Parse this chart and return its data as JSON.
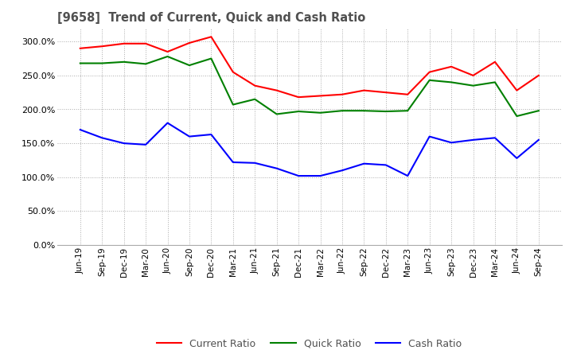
{
  "title": "[9658]  Trend of Current, Quick and Cash Ratio",
  "x_labels": [
    "Jun-19",
    "Sep-19",
    "Dec-19",
    "Mar-20",
    "Jun-20",
    "Sep-20",
    "Dec-20",
    "Mar-21",
    "Jun-21",
    "Sep-21",
    "Dec-21",
    "Mar-22",
    "Jun-22",
    "Sep-22",
    "Dec-22",
    "Mar-23",
    "Jun-23",
    "Sep-23",
    "Dec-23",
    "Mar-24",
    "Jun-24",
    "Sep-24"
  ],
  "current_ratio": [
    290,
    293,
    297,
    297,
    285,
    298,
    307,
    255,
    235,
    228,
    218,
    220,
    222,
    228,
    225,
    222,
    255,
    263,
    250,
    270,
    228,
    250
  ],
  "quick_ratio": [
    268,
    268,
    270,
    267,
    278,
    265,
    275,
    207,
    215,
    193,
    197,
    195,
    198,
    198,
    197,
    198,
    243,
    240,
    235,
    240,
    190,
    198
  ],
  "cash_ratio": [
    170,
    158,
    150,
    148,
    180,
    160,
    163,
    122,
    121,
    113,
    102,
    102,
    110,
    120,
    118,
    102,
    160,
    151,
    155,
    158,
    128,
    155
  ],
  "ylim": [
    0,
    320
  ],
  "yticks": [
    0,
    50,
    100,
    150,
    200,
    250,
    300
  ],
  "current_color": "#ff0000",
  "quick_color": "#008000",
  "cash_color": "#0000ff",
  "bg_color": "#ffffff",
  "grid_color": "#aaaaaa",
  "title_color": "#505050",
  "legend_labels": [
    "Current Ratio",
    "Quick Ratio",
    "Cash Ratio"
  ]
}
